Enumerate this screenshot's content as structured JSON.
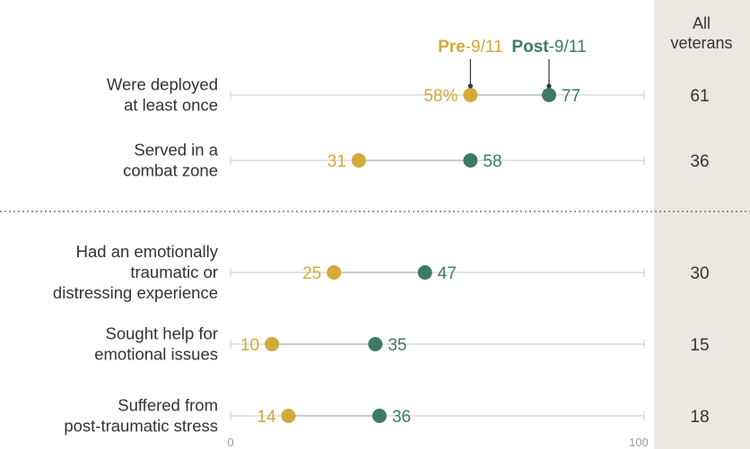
{
  "chart_data": {
    "type": "dot",
    "x_range": [
      0,
      100
    ],
    "x_tick_labels": [
      "0",
      "100"
    ],
    "series": [
      {
        "name_bold": "Pre",
        "name_rest": "-9/11",
        "color": "#D3A93A"
      },
      {
        "name_bold": "Post",
        "name_rest": "-9/11",
        "color": "#3C7A67"
      }
    ],
    "all_header": [
      "All",
      "veterans"
    ],
    "rows": [
      {
        "label": [
          "Were deployed",
          "at least once"
        ],
        "pre": 58,
        "pre_label": "58%",
        "post": 77,
        "post_label": "77",
        "all": "61"
      },
      {
        "label": [
          "Served in a",
          "combat zone"
        ],
        "pre": 31,
        "pre_label": "31",
        "post": 58,
        "post_label": "58",
        "all": "36"
      },
      {
        "label": [
          "Had an emotionally",
          "traumatic or",
          "distressing experience"
        ],
        "pre": 25,
        "pre_label": "25",
        "post": 47,
        "post_label": "47",
        "all": "30"
      },
      {
        "label": [
          "Sought help for",
          "emotional issues"
        ],
        "pre": 10,
        "pre_label": "10",
        "post": 35,
        "post_label": "35",
        "all": "15"
      },
      {
        "label": [
          "Suffered from",
          "post-traumatic stress"
        ],
        "pre": 14,
        "pre_label": "14",
        "post": 36,
        "post_label": "36",
        "all": "18"
      }
    ],
    "grid": false,
    "legend_placement": "top, above first row"
  }
}
